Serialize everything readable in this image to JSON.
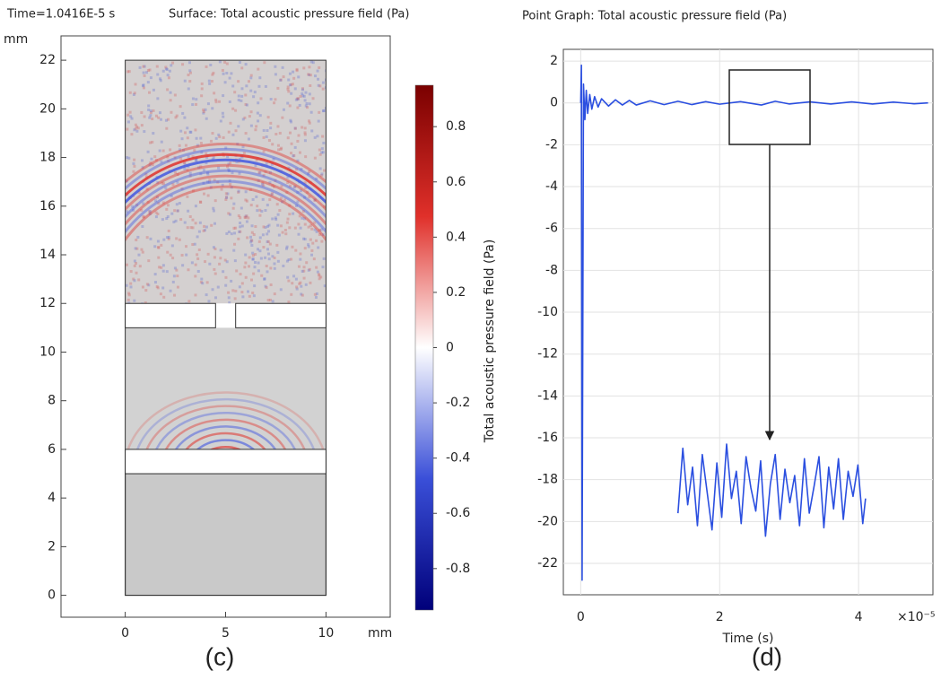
{
  "chart_data": [
    {
      "type": "surface",
      "title": "Time=1.0416E-5 s",
      "subtitle": "Surface: Total acoustic pressure field (Pa)",
      "xlabel": "mm",
      "ylabel": "mm",
      "xlim": [
        -3.2,
        13.2
      ],
      "ylim": [
        -0.9,
        23
      ],
      "xticks": [
        0,
        5,
        10
      ],
      "yticks": [
        0,
        2,
        4,
        6,
        8,
        10,
        12,
        14,
        16,
        18,
        20,
        22
      ],
      "colorbar_label": "Total acoustic pressure field (Pa)",
      "clim": [
        -0.95,
        0.95
      ],
      "cticks": [
        -0.8,
        -0.6,
        -0.4,
        -0.2,
        0,
        0.2,
        0.4,
        0.6,
        0.8
      ],
      "colors": [
        "#00007a",
        "#3a4fd8",
        "#ffffff",
        "#e0302a",
        "#7a0000"
      ],
      "panel_label": "(c)"
    },
    {
      "type": "line",
      "title": "Point Graph: Total acoustic pressure field (Pa)",
      "xlabel": "Time (s)",
      "x_scale_label": "×10⁻⁵",
      "xlim": [
        -0.25,
        5.07
      ],
      "ylim": [
        -23.5,
        2.56
      ],
      "xticks": [
        0,
        2,
        4
      ],
      "yticks": [
        -22,
        -20,
        -18,
        -16,
        -14,
        -12,
        -10,
        -8,
        -6,
        -4,
        -2,
        0,
        2
      ],
      "grid": true,
      "series": [
        {
          "color": "#2b4fe0",
          "x": [
            0,
            0.01,
            0.02,
            0.04,
            0.06,
            0.08,
            0.1,
            0.13,
            0.16,
            0.2,
            0.25,
            0.3,
            0.4,
            0.5,
            0.6,
            0.7,
            0.8,
            1.0,
            1.2,
            1.4,
            1.6,
            1.8,
            2.0,
            2.3,
            2.6,
            2.8,
            3.0,
            3.3,
            3.6,
            3.9,
            4.2,
            4.5,
            4.8,
            5.0
          ],
          "values": [
            0,
            1.8,
            -22.8,
            0.9,
            -0.8,
            0.6,
            -0.5,
            0.4,
            -0.3,
            0.3,
            -0.2,
            0.2,
            -0.15,
            0.15,
            -0.1,
            0.12,
            -0.1,
            0.1,
            -0.08,
            0.08,
            -0.08,
            0.06,
            -0.06,
            0.06,
            -0.1,
            0.08,
            -0.05,
            0.05,
            -0.05,
            0.05,
            -0.05,
            0.04,
            -0.04,
            0
          ]
        },
        {
          "color": "#2b4fe0",
          "x": [
            1.4,
            1.47,
            1.54,
            1.61,
            1.68,
            1.75,
            1.82,
            1.89,
            1.96,
            2.03,
            2.1,
            2.17,
            2.24,
            2.31,
            2.38,
            2.45,
            2.52,
            2.59,
            2.66,
            2.73,
            2.8,
            2.87,
            2.94,
            3.01,
            3.08,
            3.15,
            3.22,
            3.29,
            3.36,
            3.43,
            3.5,
            3.57,
            3.64,
            3.71,
            3.78,
            3.85,
            3.92,
            3.99,
            4.06,
            4.1
          ],
          "values": [
            -19.6,
            -16.5,
            -19.2,
            -17.4,
            -20.2,
            -16.8,
            -18.6,
            -20.4,
            -17.2,
            -19.8,
            -16.3,
            -18.9,
            -17.6,
            -20.1,
            -16.9,
            -18.4,
            -19.5,
            -17.1,
            -20.7,
            -18.2,
            -16.8,
            -19.9,
            -17.5,
            -19.1,
            -17.8,
            -20.2,
            -17.0,
            -19.6,
            -18.3,
            -16.9,
            -20.3,
            -17.4,
            -19.4,
            -17.0,
            -19.9,
            -17.6,
            -18.8,
            -17.3,
            -20.1,
            -18.9
          ]
        }
      ],
      "panel_label": "(d)"
    }
  ]
}
